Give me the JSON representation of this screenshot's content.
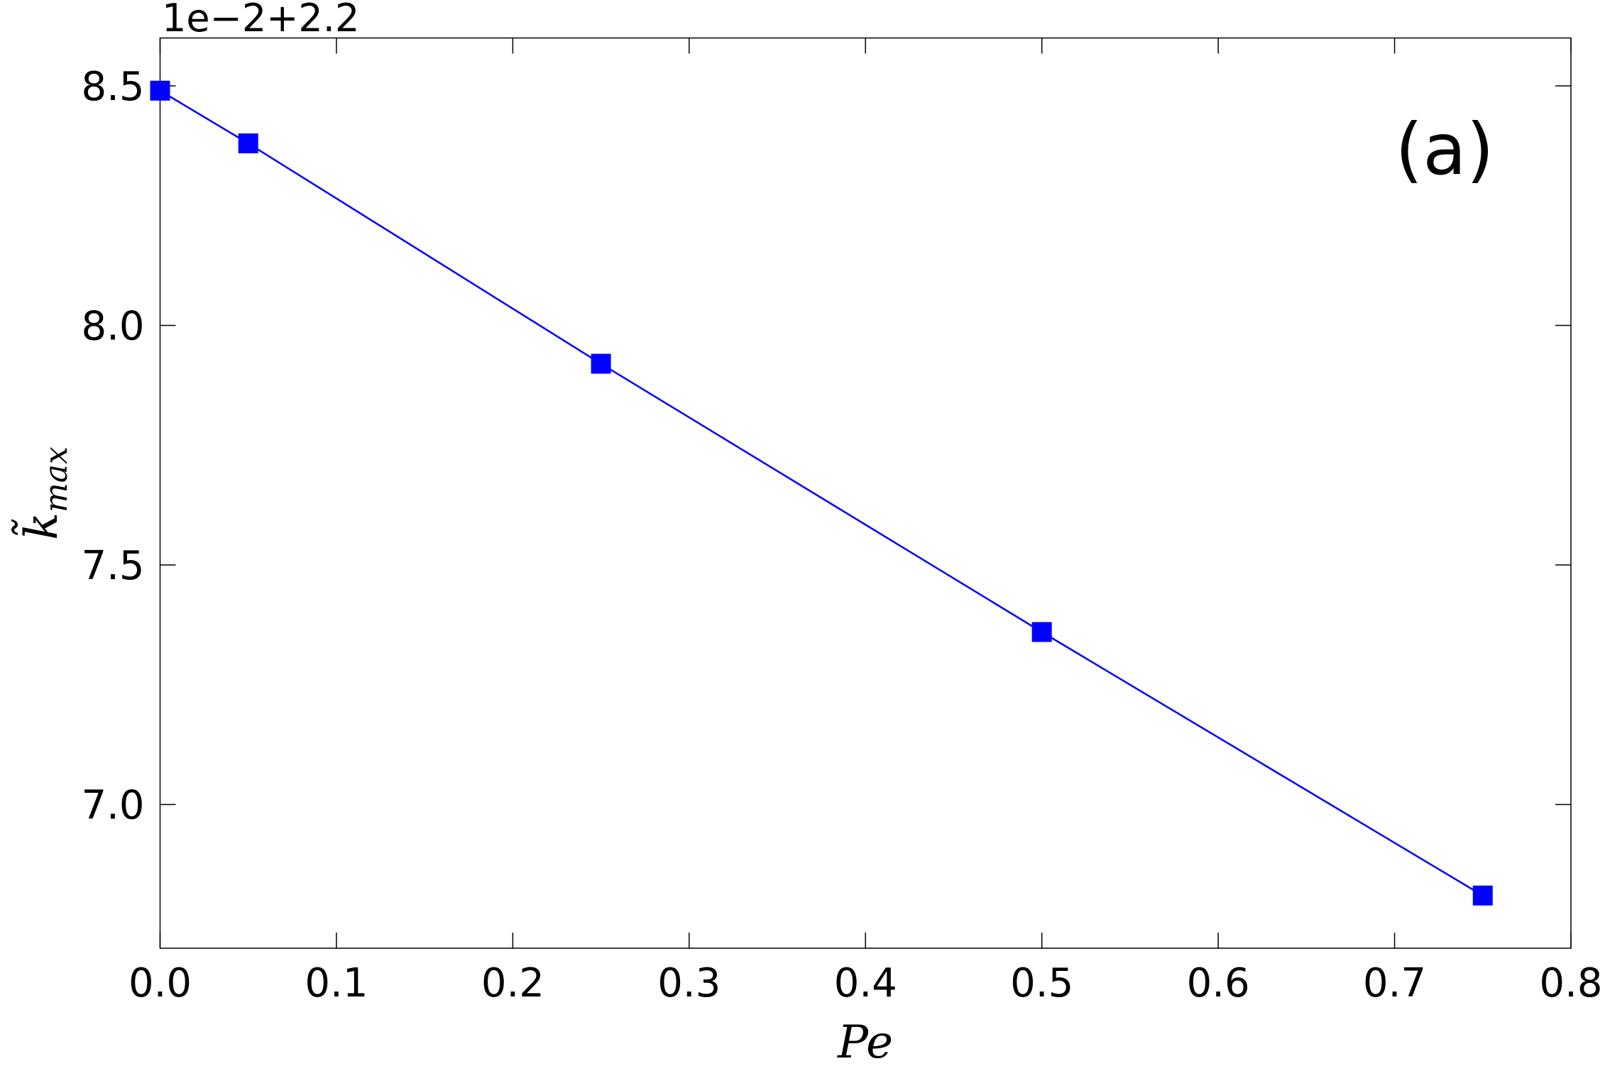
{
  "chart_data": {
    "type": "line",
    "annotation": "(a)",
    "offset_label": "1e−2+2.2",
    "xlabel": "Pe",
    "ylabel": [
      "k̃",
      "max"
    ],
    "x": [
      0,
      0.05,
      0.25,
      0.5,
      0.75
    ],
    "series": [
      {
        "color": "#0000ff",
        "values": [
          8.49,
          8.38,
          7.92,
          7.36,
          6.81
        ]
      }
    ],
    "xlim": [
      0,
      0.8
    ],
    "ylim": [
      6.7,
      8.6
    ],
    "xticks": [
      {
        "value": 0,
        "label": "0.0"
      },
      0.1,
      0.2,
      0.3,
      0.4,
      0.5,
      0.6,
      0.7,
      0.8
    ],
    "yticks": [
      {
        "value": 7,
        "label": "7.0"
      },
      7.5,
      {
        "value": 8,
        "label": "8.0"
      },
      8.5
    ],
    "grid": false
  }
}
